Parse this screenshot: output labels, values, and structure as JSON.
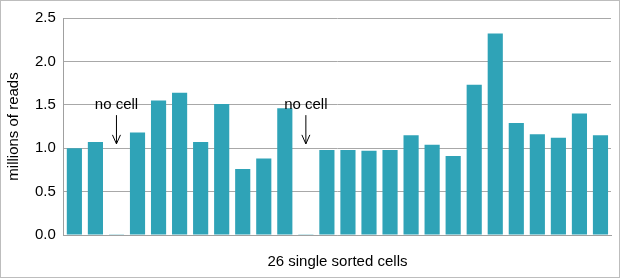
{
  "chart_data": {
    "type": "bar",
    "categories": [
      null,
      null,
      null,
      null,
      null,
      null,
      null,
      null,
      null,
      null,
      null,
      null,
      null,
      null,
      null,
      null,
      null,
      null,
      null,
      null,
      null,
      null,
      null,
      null,
      null,
      null
    ],
    "values": [
      1.0,
      1.07,
      0.01,
      1.18,
      1.55,
      1.64,
      1.07,
      1.51,
      0.76,
      0.88,
      1.46,
      0.01,
      0.98,
      0.98,
      0.97,
      0.98,
      1.15,
      1.04,
      0.91,
      1.73,
      2.32,
      1.29,
      1.16,
      1.12,
      1.4,
      1.15
    ],
    "color": "#2fa3b7",
    "x_label": "26 single sorted cells",
    "y_label": "millions of reads",
    "ylim": [
      0,
      2.5
    ],
    "yticks": [
      {
        "value": 0,
        "label": "0.0"
      },
      0.5,
      {
        "value": 1,
        "label": "1.0"
      },
      1.5,
      {
        "value": 2,
        "label": "2.0"
      },
      2.5
    ],
    "grid": true,
    "annotations": [
      {
        "text": "no cell",
        "index": 2
      },
      {
        "text": "no cell",
        "index": 11
      }
    ]
  }
}
